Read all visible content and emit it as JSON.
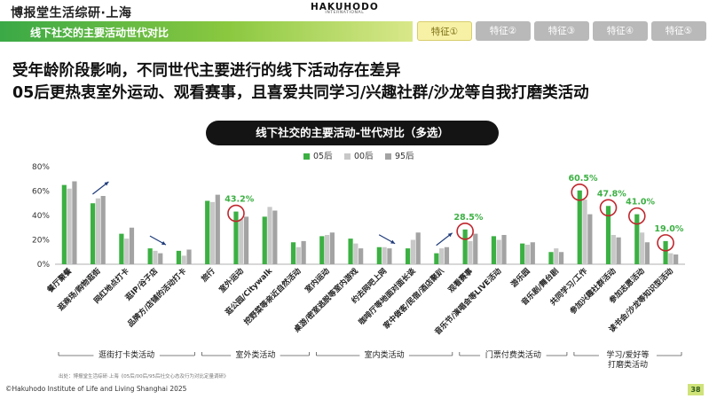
{
  "header": {
    "brand_left": "博报堂生活综研·上海",
    "brand_center": "HAKUHODO",
    "brand_center_sub": "INTERNATIONAL",
    "topic": "线下社交的主要活动世代对比",
    "tabs": [
      {
        "label": "特征①",
        "active": true
      },
      {
        "label": "特征②",
        "active": false
      },
      {
        "label": "特征③",
        "active": false
      },
      {
        "label": "特征④",
        "active": false
      },
      {
        "label": "特征⑤",
        "active": false
      }
    ]
  },
  "headline": {
    "line1": "受年龄阶段影响，不同世代主要进行的线下活动存在差异",
    "line2": "05后更热衷室外运动、观看赛事，且喜爱共同学习/兴趣社群/沙龙等自我打磨类活动"
  },
  "colors": {
    "s05": "#3cb043",
    "s00": "#c8c8c8",
    "s95": "#a3a3a3",
    "highlight": "#3cb043",
    "circle": "#c0262d",
    "arrow": "#1f3b7a"
  },
  "chart_data": {
    "type": "bar",
    "title": "线下社交的主要活动-世代对比（多选）",
    "ylim": [
      0,
      80
    ],
    "yticks": [
      "0%",
      "20%",
      "40%",
      "60%",
      "80%"
    ],
    "categories": [
      "餐厅聚餐",
      "逛商场/购物逛街",
      "网红地点打卡",
      "逛IP/谷子店",
      "品牌方/店铺的活动打卡",
      "旅行",
      "室外运动",
      "逛公园/Citywalk",
      "挖野菜等亲近自然活动",
      "室内运动",
      "桌游/密室逃脱等室内游戏",
      "约去网吧上网",
      "咖啡厅等地面对面长谈",
      "家中做客/民宿/酒店聚趴",
      "观看赛事",
      "音乐节/演唱会等LIVE活动",
      "游乐园",
      "音乐剧/舞台剧",
      "共同学习/工作",
      "参加兴趣社群活动",
      "参加志愿活动",
      "读书会/沙龙等知识型活动"
    ],
    "series": [
      {
        "name": "05后",
        "values": [
          65,
          50,
          25,
          13,
          11,
          52,
          43.2,
          39,
          18,
          23,
          21,
          14,
          13,
          9,
          28.5,
          23,
          17,
          10,
          60.5,
          47.8,
          41.0,
          19.0
        ]
      },
      {
        "name": "00后",
        "values": [
          62,
          54,
          21,
          11,
          7,
          51,
          37,
          47,
          14,
          24,
          17,
          14,
          20,
          13,
          19,
          20,
          16,
          13,
          53,
          24,
          26,
          9
        ]
      },
      {
        "name": "95后",
        "values": [
          68,
          56,
          30,
          9,
          12,
          57,
          39,
          44,
          19,
          26,
          13,
          13,
          26,
          14,
          25,
          24,
          18,
          10,
          41,
          22,
          18,
          8
        ]
      }
    ],
    "data_labels": [
      {
        "index": 6,
        "text": "43.2%"
      },
      {
        "index": 14,
        "text": "28.5%"
      },
      {
        "index": 18,
        "text": "60.5%"
      },
      {
        "index": 19,
        "text": "47.8%"
      },
      {
        "index": 20,
        "text": "41.0%"
      },
      {
        "index": 21,
        "text": "19.0%"
      }
    ],
    "circled": [
      6,
      14,
      18,
      19,
      20,
      21
    ],
    "arrows": [
      {
        "from": 1,
        "direction": "up"
      },
      {
        "from": 3,
        "direction": "down"
      },
      {
        "from": 11,
        "direction": "down"
      },
      {
        "from": 13,
        "direction": "up"
      }
    ],
    "groups": [
      {
        "label": "逛街打卡类活动",
        "from": 0,
        "to": 4
      },
      {
        "label": "室外类活动",
        "from": 5,
        "to": 8
      },
      {
        "label": "室内类活动",
        "from": 9,
        "to": 13
      },
      {
        "label": "门票付费类活动",
        "from": 14,
        "to": 17
      },
      {
        "label": "学习/爱好等\n打磨类活动",
        "from": 18,
        "to": 21
      }
    ]
  },
  "source": "出处：博报堂生活综研·上海《05后/00后/95后社交心态及行为对比定量调研》",
  "footer": "©Hakuhodo Institute of Life and Living Shanghai 2025",
  "page_number": "38"
}
